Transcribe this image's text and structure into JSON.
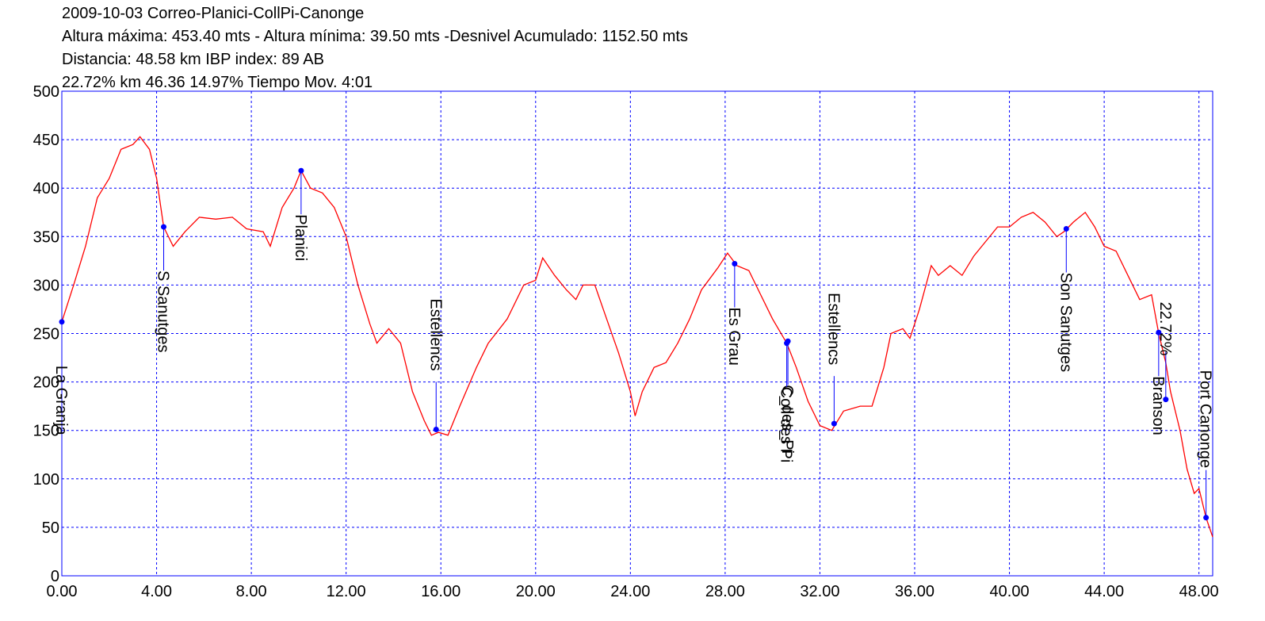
{
  "chart_data": {
    "type": "line",
    "title_lines": [
      "2009-10-03 Correo-Planici-CollPi-Canonge",
      "Altura máxima: 453.40 mts - Altura mínima: 39.50 mts -Desnivel Acumulado: 1152.50 mts",
      "Distancia: 48.58 km IBP index: 89 AB",
      "22.72% km 46.36  14.97%  Tiempo Mov. 4:01"
    ],
    "xlim": [
      0,
      48.58
    ],
    "ylim": [
      0,
      500
    ],
    "xticks": [
      {
        "value": 0,
        "label": "0.00"
      },
      {
        "value": 4,
        "label": "4.00"
      },
      {
        "value": 8,
        "label": "8.00"
      },
      {
        "value": 12,
        "label": "12.00"
      },
      {
        "value": 16,
        "label": "16.00"
      },
      {
        "value": 20,
        "label": "20.00"
      },
      {
        "value": 24,
        "label": "24.00"
      },
      {
        "value": 28,
        "label": "28.00"
      },
      {
        "value": 32,
        "label": "32.00"
      },
      {
        "value": 36,
        "label": "36.00"
      },
      {
        "value": 40,
        "label": "40.00"
      },
      {
        "value": 44,
        "label": "44.00"
      },
      {
        "value": 48,
        "label": "48.00"
      }
    ],
    "yticks": [
      0,
      50,
      100,
      150,
      200,
      250,
      300,
      350,
      400,
      450,
      500
    ],
    "grid": true,
    "axis_color": "#0000ff",
    "x": [
      0,
      0.5,
      1.0,
      1.5,
      2.0,
      2.5,
      3.0,
      3.3,
      3.7,
      4.0,
      4.3,
      4.7,
      5.2,
      5.8,
      6.5,
      7.2,
      7.8,
      8.5,
      8.8,
      9.3,
      9.8,
      10.1,
      10.5,
      11.0,
      11.5,
      12.0,
      12.5,
      13.0,
      13.3,
      13.8,
      14.3,
      14.8,
      15.3,
      15.6,
      15.9,
      16.3,
      16.8,
      17.5,
      18.0,
      18.8,
      19.5,
      20.0,
      20.3,
      20.8,
      21.3,
      21.7,
      22.0,
      22.5,
      23.0,
      23.5,
      24.0,
      24.2,
      24.5,
      25.0,
      25.5,
      26.0,
      26.5,
      27.0,
      27.7,
      28.1,
      28.5,
      29.0,
      29.5,
      30.0,
      30.6,
      31.0,
      31.5,
      32.0,
      32.5,
      33.0,
      33.7,
      34.2,
      34.7,
      35.0,
      35.5,
      35.8,
      36.2,
      36.7,
      37.0,
      37.5,
      38.0,
      38.5,
      39.0,
      39.5,
      40.0,
      40.5,
      41.0,
      41.5,
      42.0,
      42.3,
      42.7,
      43.2,
      43.6,
      44.0,
      44.5,
      45.0,
      45.5,
      46.0,
      46.3,
      46.6,
      46.8,
      47.2,
      47.5,
      47.8,
      48.0,
      48.3,
      48.58
    ],
    "series": [
      {
        "color": "#ff0000",
        "values": [
          262,
          300,
          340,
          390,
          410,
          440,
          445,
          453,
          440,
          410,
          360,
          340,
          355,
          370,
          368,
          370,
          358,
          355,
          340,
          380,
          400,
          418,
          400,
          395,
          380,
          350,
          300,
          260,
          240,
          255,
          240,
          190,
          160,
          145,
          148,
          145,
          175,
          215,
          240,
          265,
          300,
          305,
          328,
          310,
          295,
          285,
          300,
          300,
          265,
          230,
          190,
          165,
          190,
          215,
          220,
          240,
          265,
          295,
          318,
          333,
          320,
          315,
          290,
          265,
          240,
          215,
          180,
          155,
          150,
          170,
          175,
          175,
          215,
          250,
          255,
          245,
          275,
          320,
          310,
          320,
          310,
          330,
          345,
          360,
          360,
          370,
          375,
          365,
          350,
          355,
          365,
          375,
          360,
          340,
          335,
          310,
          285,
          290,
          250,
          220,
          190,
          150,
          110,
          85,
          90,
          60,
          40
        ]
      }
    ],
    "waypoint_color": "#0000ff",
    "waypoints": [
      {
        "name": "La Granja",
        "x": 0,
        "y": 262
      },
      {
        "name": "S Sanutges",
        "x": 4.3,
        "y": 360
      },
      {
        "name": "Planici",
        "x": 10.1,
        "y": 418
      },
      {
        "name": "Estellencs",
        "x": 15.8,
        "y": 151
      },
      {
        "name": "Es Grau",
        "x": 28.4,
        "y": 322
      },
      {
        "name": "C_des_Pi",
        "x": 30.65,
        "y": 242
      },
      {
        "name": "Coll des Pi",
        "x": 30.6,
        "y": 240
      },
      {
        "name": "Estellencs",
        "x": 32.6,
        "y": 157
      },
      {
        "name": "Son Sanutges",
        "x": 42.4,
        "y": 358
      },
      {
        "name": "Branson",
        "x": 46.3,
        "y": 251
      },
      {
        "name": "22.72%",
        "x": 46.6,
        "y": 182
      },
      {
        "name": "Port Canonge",
        "x": 48.3,
        "y": 60
      }
    ]
  }
}
